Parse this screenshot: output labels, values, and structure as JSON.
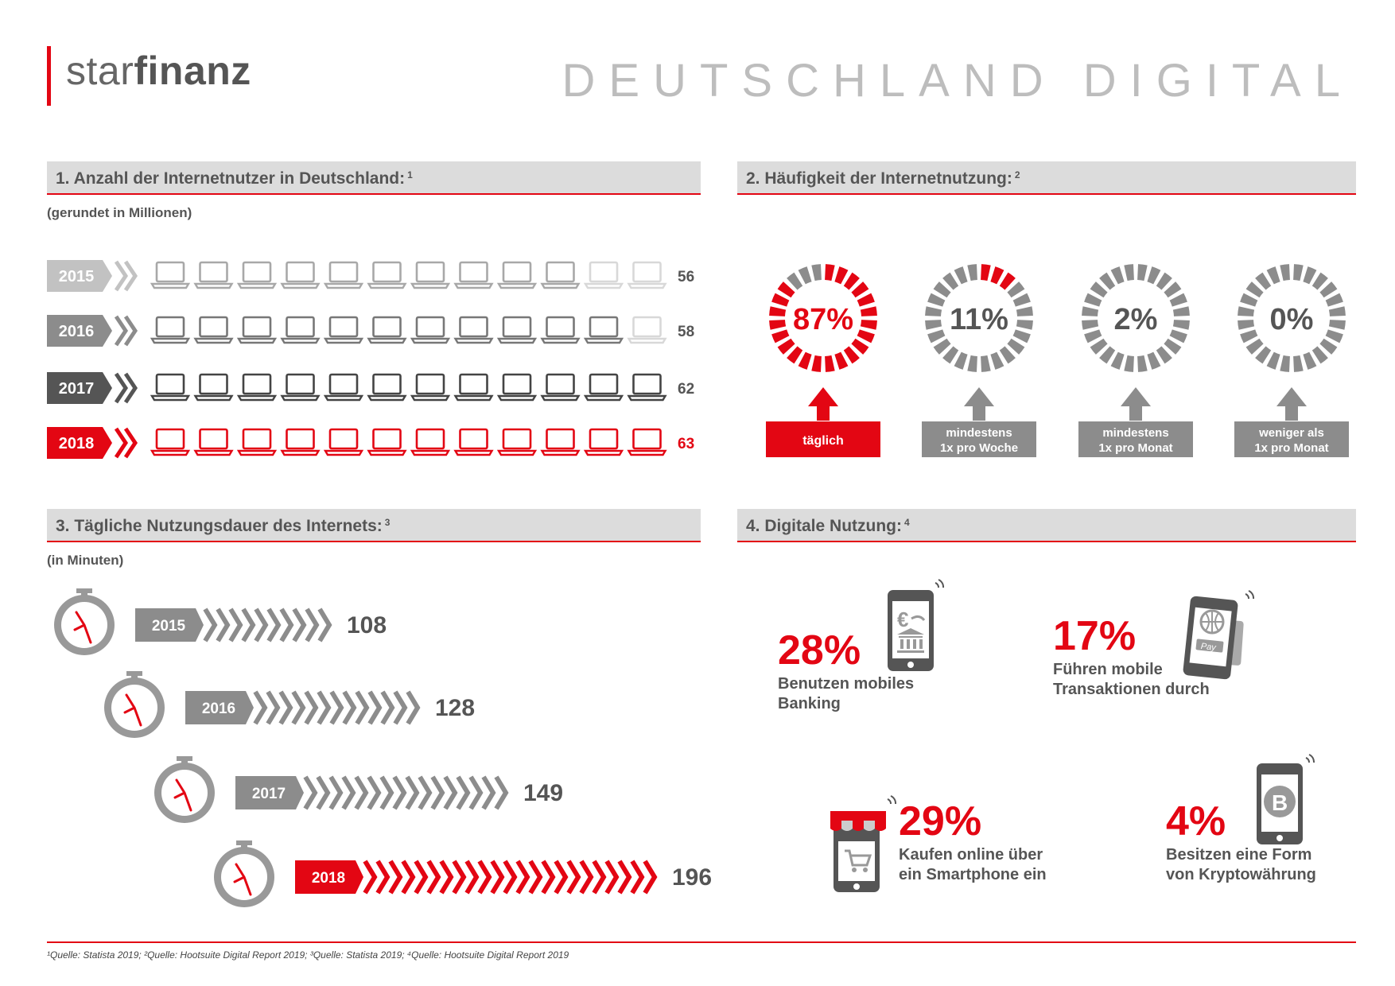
{
  "header": {
    "logo_light": "star",
    "logo_bold": "finanz",
    "title": "DEUTSCHLAND DIGITAL"
  },
  "colors": {
    "accent": "#e30613",
    "grey": "#8c8c8c",
    "header_bg": "#dcdcdc"
  },
  "section1": {
    "title": "1. Anzahl der Internetnutzer in Deutschland:",
    "footnote": "1",
    "note": "(gerundet in Millionen)"
  },
  "section2": {
    "title": "2. Häufigkeit der Internetnutzung:",
    "footnote": "2"
  },
  "section3": {
    "title": "3. Tägliche Nutzungsdauer des Internets:",
    "footnote": "3",
    "note": "(in Minuten)"
  },
  "section4": {
    "title": "4. Digitale Nutzung:",
    "footnote": "4",
    "items": [
      {
        "pct": "28%",
        "line1": "Benutzen mobiles",
        "line2": "Banking",
        "icon": "mobile-banking-icon"
      },
      {
        "pct": "17%",
        "line1": "Führen mobile",
        "line2": "Transaktionen durch",
        "icon": "mobile-pay-icon"
      },
      {
        "pct": "29%",
        "line1": "Kaufen online über",
        "line2": "ein Smartphone ein",
        "icon": "mobile-shop-icon"
      },
      {
        "pct": "4%",
        "line1": "Besitzen eine Form",
        "line2": "von Kryptowährung",
        "icon": "bitcoin-phone-icon"
      }
    ]
  },
  "footer": "¹Quelle: Statista 2019; ²Quelle: Hootsuite Digital Report 2019; ³Quelle: Statista 2019; ⁴Quelle: Hootsuite Digital Report 2019",
  "chart_data": [
    {
      "type": "bar",
      "title": "1. Anzahl der Internetnutzer in Deutschland:",
      "unit": "(gerundet in Millionen)",
      "categories": [
        "2015",
        "2016",
        "2017",
        "2018"
      ],
      "values": [
        56,
        58,
        62,
        63
      ],
      "icon": "laptop-icon",
      "icons_per_row": 12
    },
    {
      "type": "pie",
      "title": "2. Häufigkeit der Internetnutzung:",
      "categories": [
        "täglich",
        "mindestens 1x pro Woche",
        "mindestens 1x pro Monat",
        "weniger als 1x pro Monat"
      ],
      "values": [
        87,
        11,
        2,
        0
      ],
      "labels": [
        "87%",
        "11%",
        "2%",
        "0%"
      ]
    },
    {
      "type": "bar",
      "title": "3. Tägliche Nutzungsdauer des Internets:",
      "unit": "(in Minuten)",
      "categories": [
        "2015",
        "2016",
        "2017",
        "2018"
      ],
      "values": [
        108,
        128,
        149,
        196
      ]
    }
  ]
}
